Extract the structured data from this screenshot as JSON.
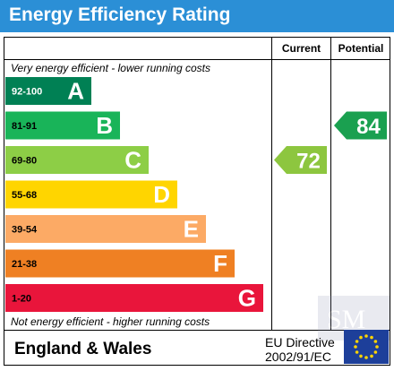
{
  "title": "Energy Efficiency Rating",
  "columns": {
    "current": "Current",
    "potential": "Potential"
  },
  "top_note": "Very energy efficient - lower running costs",
  "bottom_note": "Not energy efficient - higher running costs",
  "footer": {
    "region": "England & Wales",
    "directive_line1": "EU Directive",
    "directive_line2": "2002/91/EC"
  },
  "colors": {
    "title_bar": "#2b8fd6",
    "current_arrow": "#8dc63f",
    "potential_arrow": "#1aa050"
  },
  "chart_data": {
    "type": "bar",
    "categories": [
      "A",
      "B",
      "C",
      "D",
      "E",
      "F",
      "G"
    ],
    "ranges": [
      "92-100",
      "81-91",
      "69-80",
      "55-68",
      "39-54",
      "21-38",
      "1-20"
    ],
    "colors": [
      "#008054",
      "#19b459",
      "#8dce46",
      "#ffd500",
      "#fcaa65",
      "#ef8023",
      "#e9153b"
    ],
    "current": {
      "value": 72,
      "band": "C"
    },
    "potential": {
      "value": 84,
      "band": "B"
    }
  },
  "icons": {
    "eu_flag": "eu-flag-icon",
    "watermark": "sm-watermark-icon"
  }
}
